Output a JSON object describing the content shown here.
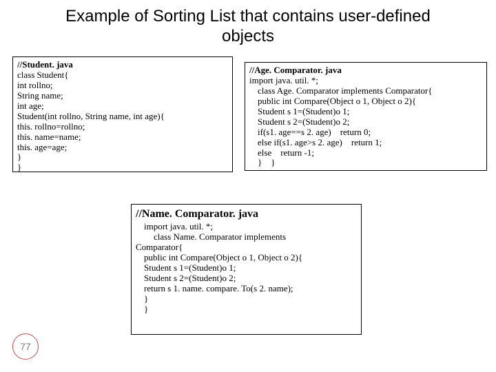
{
  "title": "Example of Sorting List that contains user-defined objects",
  "page_number": "77",
  "colors": {
    "page_circle_border": "#b9504a",
    "page_number_text": "#7a7a7a",
    "box_border": "#000000",
    "background": "#ffffff"
  },
  "box_left": {
    "lines": [
      {
        "text": "//Student. java",
        "bold": true,
        "indent": 0
      },
      {
        "text": "class Student{",
        "bold": false,
        "indent": 0
      },
      {
        "text": "int rollno;",
        "bold": false,
        "indent": 0
      },
      {
        "text": "String name;",
        "bold": false,
        "indent": 0
      },
      {
        "text": "int age;",
        "bold": false,
        "indent": 0
      },
      {
        "text": "Student(int rollno, String name, int age){",
        "bold": false,
        "indent": 0
      },
      {
        "text": "this. rollno=rollno;",
        "bold": false,
        "indent": 0
      },
      {
        "text": "this. name=name;",
        "bold": false,
        "indent": 0
      },
      {
        "text": "this. age=age;",
        "bold": false,
        "indent": 0
      },
      {
        "text": "}",
        "bold": false,
        "indent": 0
      },
      {
        "text": "}",
        "bold": false,
        "indent": 0
      }
    ]
  },
  "box_right": {
    "lines": [
      {
        "text": "//Age. Comparator. java",
        "bold": true,
        "indent": 0
      },
      {
        "text": "import java. util. *;",
        "bold": false,
        "indent": 0
      },
      {
        "text": "class Age. Comparator implements Comparator{",
        "bold": false,
        "indent": 1
      },
      {
        "text": "public int Compare(Object o 1, Object o 2){",
        "bold": false,
        "indent": 1
      },
      {
        "text": "Student s 1=(Student)o 1;",
        "bold": false,
        "indent": 1
      },
      {
        "text": "Student s 2=(Student)o 2;",
        "bold": false,
        "indent": 1
      },
      {
        "text": "if(s1. age==s 2. age)    return 0;",
        "bold": false,
        "indent": 1
      },
      {
        "text": "else if(s1. age>s 2. age)    return 1;",
        "bold": false,
        "indent": 1
      },
      {
        "text": "else    return -1;",
        "bold": false,
        "indent": 1
      },
      {
        "text": "}    }",
        "bold": false,
        "indent": 1
      }
    ]
  },
  "box_bottom": {
    "title": "//Name. Comparator. java",
    "lines": [
      {
        "text": "import java. util. *;",
        "bold": false,
        "indent": 1
      },
      {
        "text": "class Name. Comparator implements",
        "bold": false,
        "indent": 2
      },
      {
        "text": "Comparator{",
        "bold": false,
        "indent": 0
      },
      {
        "text": "public int Compare(Object o 1, Object o 2){",
        "bold": false,
        "indent": 1
      },
      {
        "text": "Student s 1=(Student)o 1;",
        "bold": false,
        "indent": 1
      },
      {
        "text": "Student s 2=(Student)o 2;",
        "bold": false,
        "indent": 1
      },
      {
        "text": "",
        "bold": false,
        "indent": 0
      },
      {
        "text": "return s 1. name. compare. To(s 2. name);",
        "bold": false,
        "indent": 1
      },
      {
        "text": "}",
        "bold": false,
        "indent": 1
      },
      {
        "text": "}",
        "bold": false,
        "indent": 1
      }
    ]
  }
}
